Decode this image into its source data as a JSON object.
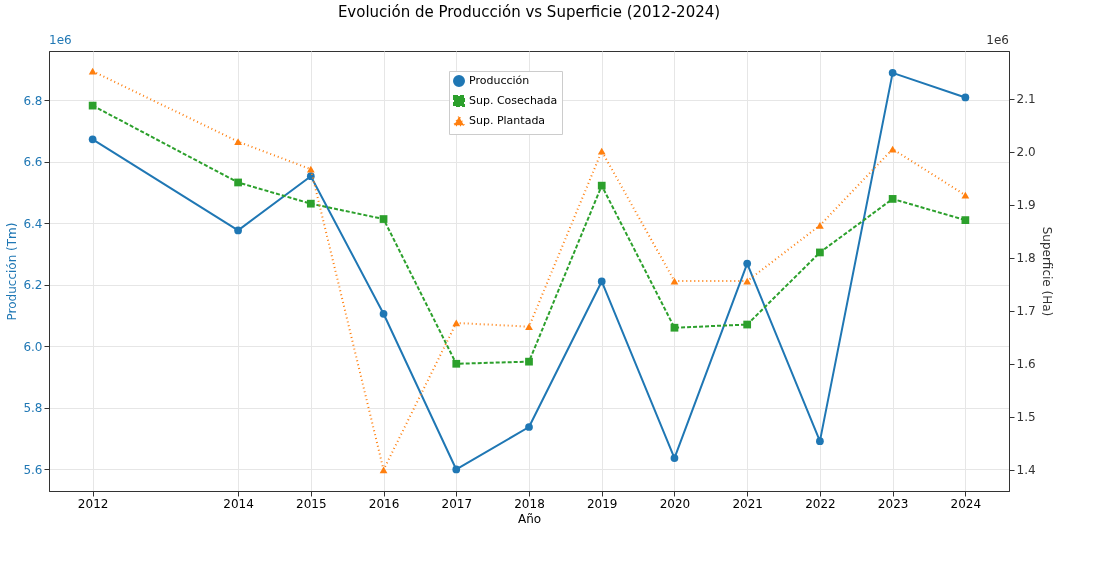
{
  "chart_data": {
    "type": "line",
    "title": "Evolución de Producción vs Superficie (2012-2024)",
    "xlabel": "Año",
    "ylabel": "Producción (Tm)",
    "y2label": "Superficie (Ha)",
    "x": [
      2012,
      2014,
      2015,
      2016,
      2017,
      2018,
      2019,
      2020,
      2021,
      2022,
      2023,
      2024
    ],
    "series": [
      {
        "name": "Producción",
        "color": "#1f77b4",
        "marker": "circle",
        "line_style": "solid",
        "values": [
          6.673,
          6.377,
          6.553,
          6.106,
          5.6,
          5.738,
          6.211,
          5.637,
          6.269,
          5.692,
          6.889,
          6.809
        ]
      },
      {
        "name": "Sup. Cosechada",
        "color": "#2ca02c",
        "marker": "square",
        "line_style": "dashed",
        "axis": "y2",
        "values": [
          2.087,
          1.942,
          1.902,
          1.873,
          1.6,
          1.604,
          1.936,
          1.668,
          1.674,
          1.81,
          1.911,
          1.871
        ]
      },
      {
        "name": "Sup. Plantada",
        "color": "#ff7f0e",
        "marker": "triangle",
        "line_style": "dotted",
        "axis": "y2",
        "values": [
          2.152,
          2.019,
          1.967,
          1.4,
          1.677,
          1.67,
          2.001,
          1.756,
          1.756,
          1.861,
          2.005,
          1.918
        ]
      }
    ],
    "xlim": [
      2011.4,
      2024.6
    ],
    "xticks": [
      2012,
      2014,
      2015,
      2016,
      2017,
      2018,
      2019,
      2020,
      2021,
      2022,
      2023,
      2024
    ],
    "ylim": [
      5.53,
      6.96
    ],
    "yticks": [
      5.6,
      5.8,
      {
        "value": 6,
        "label": "6.0"
      },
      6.2,
      6.4,
      6.6,
      6.8
    ],
    "y2lim": [
      1.36,
      2.19
    ],
    "y2ticks": [
      1.4,
      1.5,
      1.6,
      1.7,
      1.8,
      1.9,
      {
        "value": 2,
        "label": "2.0"
      },
      2.1
    ],
    "annotations": [
      "1e6",
      "1e6"
    ],
    "grid": true,
    "legend": "top"
  }
}
